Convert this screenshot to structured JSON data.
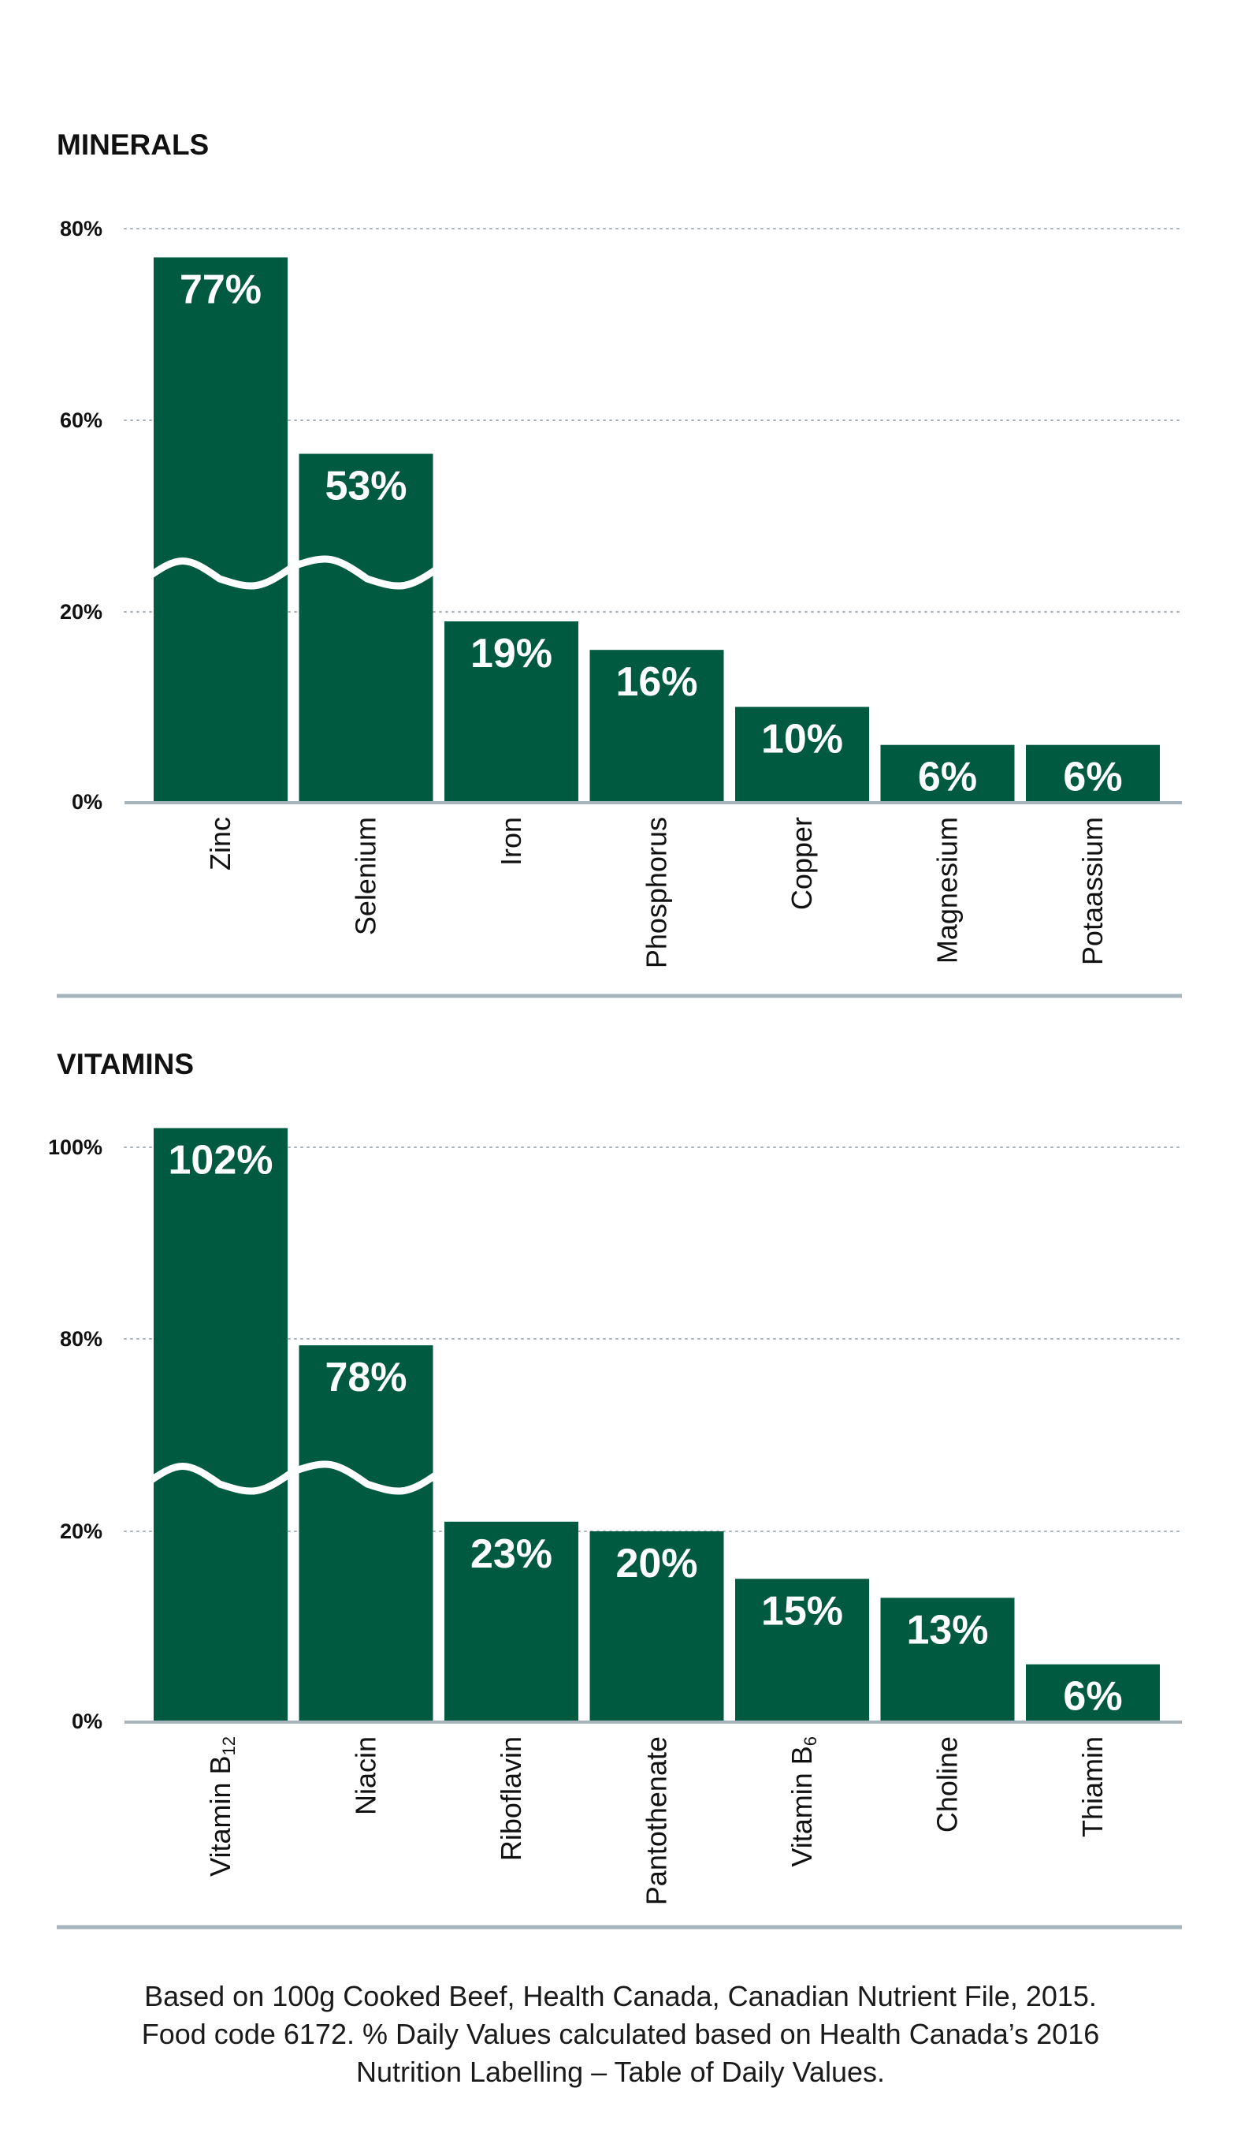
{
  "colors": {
    "bar": "#005a40",
    "axis": "#a7b4bb",
    "grid": "#a7b4bb",
    "text": "#111111",
    "value_text": "#ffffff"
  },
  "chart_data": [
    {
      "type": "bar",
      "title": "MINERALS",
      "categories": [
        "Zinc",
        "Selenium",
        "Iron",
        "Phosphorus",
        "Copper",
        "Magnesium",
        "Potaassium"
      ],
      "values": [
        77,
        53,
        19,
        16,
        10,
        6,
        6
      ],
      "value_labels": [
        "77%",
        "53%",
        "19%",
        "16%",
        "10%",
        "6%",
        "6%"
      ],
      "category_subscripts": [
        "",
        "",
        "",
        "",
        "",
        "",
        ""
      ],
      "ticks": [
        {
          "label": "80%",
          "value": 80
        },
        {
          "label": "60%",
          "value": 60
        },
        {
          "label": "20%",
          "value": 20
        },
        {
          "label": "0%",
          "value": 0
        }
      ],
      "axis_break": {
        "between": [
          20,
          60
        ],
        "broken_bars": [
          "Zinc",
          "Selenium"
        ]
      },
      "grid": "dotted",
      "xlabel": "",
      "ylabel": ""
    },
    {
      "type": "bar",
      "title": "VITAMINS",
      "categories": [
        "Vitamin B",
        "Niacin",
        "Riboflavin",
        "Pantothenate",
        "Vitamin B",
        "Choline",
        "Thiamin"
      ],
      "category_subscripts": [
        "12",
        "",
        "",
        "",
        "6",
        "",
        ""
      ],
      "values": [
        102,
        78,
        23,
        20,
        15,
        13,
        6
      ],
      "value_labels": [
        "102%",
        "78%",
        "23%",
        "20%",
        "15%",
        "13%",
        "6%"
      ],
      "ticks": [
        {
          "label": "100%",
          "value": 100
        },
        {
          "label": "80%",
          "value": 80
        },
        {
          "label": "20%",
          "value": 20
        },
        {
          "label": "0%",
          "value": 0
        }
      ],
      "axis_break": {
        "between": [
          20,
          80
        ],
        "broken_bars": [
          "Vitamin B12",
          "Niacin"
        ]
      },
      "grid": "dotted",
      "xlabel": "",
      "ylabel": ""
    }
  ],
  "footnote": {
    "line1": "Based on 100g Cooked Beef, Health Canada, Canadian Nutrient File, 2015.",
    "line2": "Food code 6172. % Daily Values calculated based on Health Canada’s 2016",
    "line3": "Nutrition Labelling – Table of Daily Values."
  }
}
